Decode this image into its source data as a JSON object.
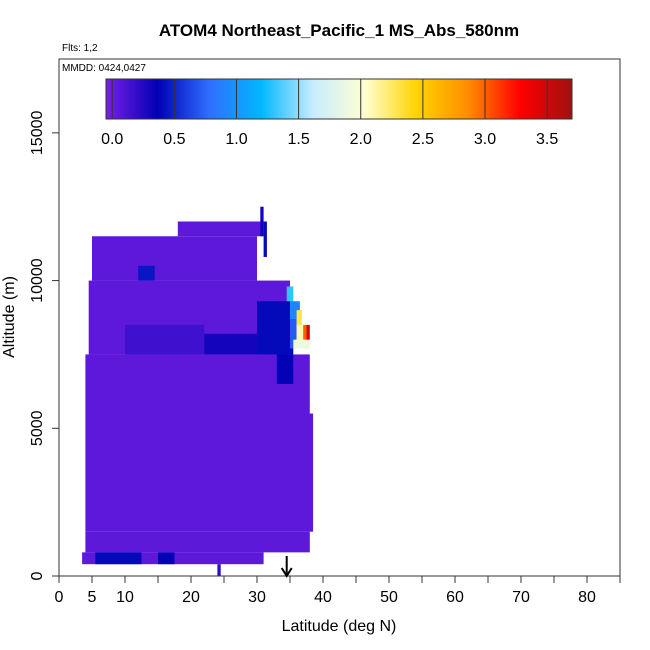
{
  "chart_data": {
    "type": "heatmap",
    "title": "ATOM4 Northeast_Pacific_1 MS_Abs_580nm",
    "flights_label": "Flts: 1,2",
    "mmdd_label": "MMDD: 0424,0427",
    "xlabel": "Latitude (deg N)",
    "ylabel": "Altitude (m)",
    "xlim": [
      0,
      85
    ],
    "ylim": [
      0,
      17500
    ],
    "x_ticks": [
      0,
      5,
      10,
      20,
      30,
      40,
      50,
      60,
      70,
      80
    ],
    "x_tick_labels": [
      "0",
      "5",
      "10",
      "20",
      "30",
      "40",
      "50",
      "60",
      "70",
      "80"
    ],
    "x_minor_ticks": [
      0,
      5,
      10,
      15,
      20,
      25,
      30,
      35,
      40,
      45,
      50,
      55,
      60,
      65,
      70,
      75,
      80,
      85
    ],
    "y_ticks": [
      0,
      5000,
      10000,
      15000
    ],
    "y_tick_labels": [
      "0",
      "5000",
      "10000",
      "15000"
    ],
    "colorbar": {
      "min": -0.05,
      "max": 3.7,
      "ticks": [
        0.0,
        0.5,
        1.0,
        1.5,
        2.0,
        2.5,
        3.0,
        3.5
      ],
      "tick_labels": [
        "0.0",
        "0.5",
        "1.0",
        "1.5",
        "2.0",
        "2.5",
        "3.0",
        "3.5"
      ],
      "colors": [
        "#7a1fe6",
        "#0000b4",
        "#2f6fff",
        "#00b8ff",
        "#c8ecff",
        "#ffffd0",
        "#ffd400",
        "#ff8c00",
        "#ff0000",
        "#a01010"
      ]
    },
    "marker_latitude": 34.5,
    "cells": [
      {
        "lat": [
          5.0,
          30.0
        ],
        "alt": [
          10000,
          11500
        ],
        "value": 0.05
      },
      {
        "lat": [
          18.0,
          31.0
        ],
        "alt": [
          11500,
          12000
        ],
        "value": 0.05
      },
      {
        "lat": [
          4.5,
          35.0
        ],
        "alt": [
          7500,
          10000
        ],
        "value": 0.05
      },
      {
        "lat": [
          4.0,
          38.0
        ],
        "alt": [
          5500,
          7500
        ],
        "value": 0.05
      },
      {
        "lat": [
          4.0,
          38.5
        ],
        "alt": [
          1500,
          5500
        ],
        "value": 0.05
      },
      {
        "lat": [
          4.0,
          38.0
        ],
        "alt": [
          800,
          1500
        ],
        "value": 0.05
      },
      {
        "lat": [
          3.5,
          31.0
        ],
        "alt": [
          400,
          800
        ],
        "value": 0.05
      },
      {
        "lat": [
          24.0,
          24.5
        ],
        "alt": [
          0,
          400
        ],
        "value": 0.2
      },
      {
        "lat": [
          30.5,
          31.0
        ],
        "alt": [
          11500,
          12500
        ],
        "value": 0.3
      },
      {
        "lat": [
          31.0,
          31.5
        ],
        "alt": [
          10800,
          12000
        ],
        "value": 0.4
      },
      {
        "lat": [
          12.0,
          14.5
        ],
        "alt": [
          10000,
          10500
        ],
        "value": 0.45
      },
      {
        "lat": [
          30.0,
          35.5
        ],
        "alt": [
          7500,
          9300
        ],
        "value": 0.4
      },
      {
        "lat": [
          33.0,
          35.5
        ],
        "alt": [
          6500,
          7500
        ],
        "value": 0.35
      },
      {
        "lat": [
          22.0,
          30.0
        ],
        "alt": [
          7500,
          8200
        ],
        "value": 0.3
      },
      {
        "lat": [
          10.0,
          22.0
        ],
        "alt": [
          7500,
          8500
        ],
        "value": 0.15
      },
      {
        "lat": [
          5.5,
          12.5
        ],
        "alt": [
          400,
          800
        ],
        "value": 0.4
      },
      {
        "lat": [
          15.0,
          17.5
        ],
        "alt": [
          400,
          800
        ],
        "value": 0.35
      },
      {
        "lat": [
          35.0,
          36.0
        ],
        "alt": [
          7700,
          8700
        ],
        "value": 0.7
      },
      {
        "lat": [
          35.0,
          36.5
        ],
        "alt": [
          8700,
          9300
        ],
        "value": 0.9
      },
      {
        "lat": [
          34.5,
          35.5
        ],
        "alt": [
          9300,
          9800
        ],
        "value": 1.3
      },
      {
        "lat": [
          35.5,
          38.0
        ],
        "alt": [
          7700,
          8000
        ],
        "value": 1.9
      },
      {
        "lat": [
          36.0,
          37.5
        ],
        "alt": [
          8000,
          8500
        ],
        "value": 2.1
      },
      {
        "lat": [
          36.0,
          36.8
        ],
        "alt": [
          8500,
          9000
        ],
        "value": 2.3
      },
      {
        "lat": [
          37.0,
          37.5
        ],
        "alt": [
          8000,
          8500
        ],
        "value": 3.0
      },
      {
        "lat": [
          37.5,
          38.0
        ],
        "alt": [
          8000,
          8500
        ],
        "value": 3.5
      }
    ]
  }
}
